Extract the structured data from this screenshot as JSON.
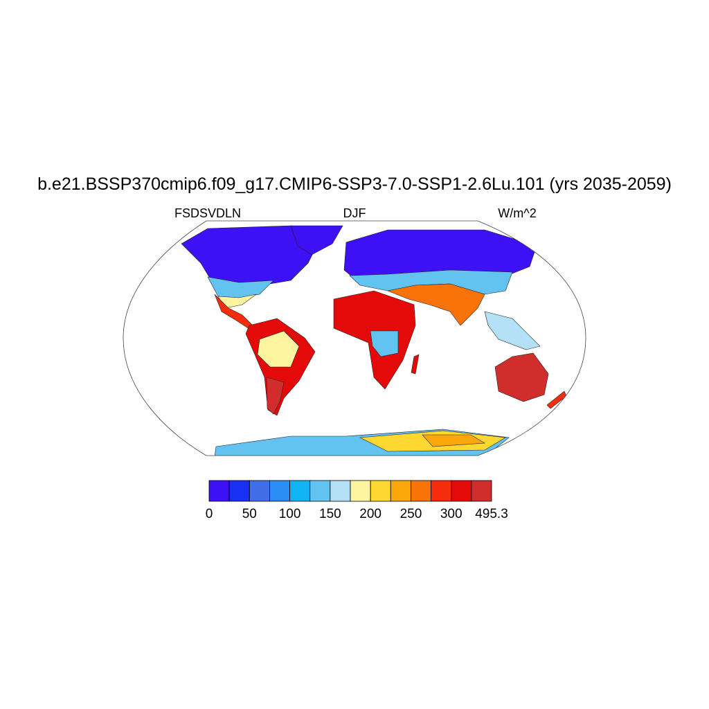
{
  "title": "b.e21.BSSP370cmip6.f09_g17.CMIP6-SSP3-7.0-SSP1-2.6Lu.101 (yrs 2035-2059)",
  "left_string": "FSDSVDLN",
  "center_string": "DJF",
  "right_string": "W/m^2",
  "colorbar": {
    "colors": [
      "#3e10f5",
      "#1a30f5",
      "#3f6ee6",
      "#2a8cf5",
      "#10b4f5",
      "#62c2f0",
      "#b4e0f5",
      "#fff5a0",
      "#fed830",
      "#fca80c",
      "#fa7308",
      "#f62c0c",
      "#e40a0a",
      "#d22d2d"
    ],
    "labels": [
      0,
      50,
      100,
      150,
      200,
      250,
      300,
      495.3
    ]
  }
}
